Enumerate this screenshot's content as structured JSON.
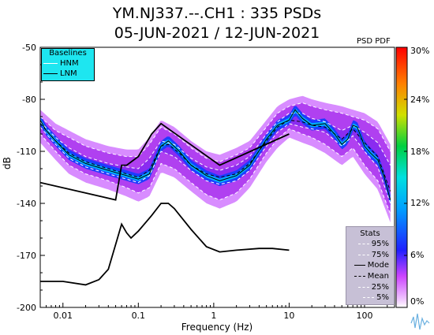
{
  "title_line1": "YM.NJ337.--.CH1 : 335 PSDs",
  "title_line2": "05-JUN-2021 / 12-JUN-2021",
  "colorbar_title": "PSD PDF",
  "colorbar_ticks": [
    "30%",
    "24%",
    "18%",
    "12%",
    "6%",
    "0%"
  ],
  "chart_data": {
    "type": "heatmap",
    "xlabel": "Frequency (Hz)",
    "ylabel": "dB",
    "xscale": "log",
    "xlim": [
      0.005,
      250
    ],
    "ylim": [
      -200,
      -50
    ],
    "xticks": [
      0.01,
      0.1,
      1,
      10,
      100
    ],
    "xtick_labels": [
      "0.01",
      "0.1",
      "1",
      "10",
      "100"
    ],
    "yticks": [
      -50,
      -80,
      -110,
      -140,
      -170,
      -200
    ],
    "ytick_labels": [
      "-50",
      "-80",
      "-110",
      "-140",
      "-170",
      "-200"
    ],
    "colorbar_range_percent": [
      0,
      30
    ],
    "legend_baselines": {
      "title": "Baselines",
      "entries": [
        "HNM",
        "LNM"
      ]
    },
    "legend_stats": {
      "title": "Stats",
      "entries": [
        "95%",
        "75%",
        "Mode",
        "Mean",
        "25%",
        "5%"
      ]
    },
    "series": [
      {
        "name": "HNM",
        "x": [
          0.005,
          0.05,
          0.06,
          0.07,
          0.1,
          0.15,
          0.2,
          1.2,
          10
        ],
        "y": [
          -128,
          -138,
          -118,
          -118,
          -113,
          -100,
          -94,
          -118,
          -100
        ]
      },
      {
        "name": "LNM",
        "x": [
          0.005,
          0.01,
          0.02,
          0.03,
          0.04,
          0.06,
          0.07,
          0.08,
          0.1,
          0.15,
          0.2,
          0.25,
          0.3,
          0.5,
          0.8,
          1.2,
          2,
          4,
          6,
          10
        ],
        "y": [
          -185,
          -185,
          -187,
          -184,
          -178,
          -152,
          -157,
          -160,
          -156,
          -147,
          -140,
          -140,
          -143,
          -155,
          -165,
          -168,
          -167,
          -166,
          -166,
          -167
        ]
      },
      {
        "name": "Mode",
        "x": [
          0.005,
          0.006,
          0.008,
          0.012,
          0.02,
          0.04,
          0.07,
          0.1,
          0.14,
          0.2,
          0.25,
          0.35,
          0.5,
          0.8,
          1.2,
          2,
          3,
          5,
          7,
          10,
          12,
          15,
          20,
          30,
          40,
          50,
          60,
          70,
          80,
          100,
          120,
          150,
          180,
          220
        ],
        "y": [
          -92,
          -98,
          -104,
          -112,
          -117,
          -121,
          -124,
          -126,
          -123,
          -107,
          -104,
          -110,
          -118,
          -124,
          -127,
          -124,
          -118,
          -103,
          -95,
          -92,
          -86,
          -91,
          -95,
          -94,
          -100,
          -106,
          -103,
          -95,
          -96,
          -107,
          -111,
          -115,
          -124,
          -138
        ]
      },
      {
        "name": "Mean",
        "x": [
          0.005,
          0.008,
          0.012,
          0.02,
          0.04,
          0.07,
          0.1,
          0.14,
          0.2,
          0.25,
          0.35,
          0.5,
          0.8,
          1.2,
          2,
          3,
          5,
          7,
          10,
          15,
          20,
          30,
          50,
          70,
          100,
          150,
          220
        ],
        "y": [
          -94,
          -104,
          -111,
          -116,
          -120,
          -123,
          -125,
          -121,
          -107,
          -106,
          -111,
          -118,
          -123,
          -125,
          -123,
          -117,
          -104,
          -96,
          -92,
          -93,
          -95,
          -96,
          -103,
          -97,
          -105,
          -113,
          -133
        ]
      },
      {
        "name": "95%",
        "x": [
          0.005,
          0.008,
          0.012,
          0.02,
          0.04,
          0.07,
          0.1,
          0.14,
          0.2,
          0.3,
          0.5,
          0.8,
          1.2,
          2,
          3,
          5,
          7,
          10,
          15,
          20,
          30,
          50,
          70,
          100,
          150,
          220
        ],
        "y": [
          -90,
          -98,
          -102,
          -107,
          -111,
          -113,
          -113,
          -106,
          -96,
          -100,
          -108,
          -114,
          -116,
          -112,
          -108,
          -96,
          -88,
          -84,
          -82,
          -84,
          -86,
          -88,
          -90,
          -92,
          -97,
          -110
        ]
      },
      {
        "name": "75%",
        "x": [
          0.005,
          0.008,
          0.012,
          0.02,
          0.04,
          0.07,
          0.1,
          0.14,
          0.2,
          0.3,
          0.5,
          0.8,
          1.2,
          2,
          3,
          5,
          7,
          10,
          15,
          20,
          30,
          50,
          70,
          100,
          150,
          220
        ],
        "y": [
          -93,
          -102,
          -108,
          -113,
          -117,
          -119,
          -120,
          -114,
          -104,
          -106,
          -114,
          -119,
          -121,
          -118,
          -113,
          -100,
          -93,
          -88,
          -88,
          -91,
          -93,
          -98,
          -95,
          -99,
          -105,
          -118
        ]
      },
      {
        "name": "25%",
        "x": [
          0.005,
          0.008,
          0.012,
          0.02,
          0.04,
          0.07,
          0.1,
          0.14,
          0.2,
          0.3,
          0.5,
          0.8,
          1.2,
          2,
          3,
          5,
          7,
          10,
          15,
          20,
          30,
          50,
          70,
          100,
          150,
          220
        ],
        "y": [
          -96,
          -106,
          -114,
          -119,
          -123,
          -126,
          -128,
          -124,
          -110,
          -113,
          -121,
          -127,
          -129,
          -127,
          -121,
          -107,
          -99,
          -94,
          -96,
          -97,
          -99,
          -107,
          -101,
          -110,
          -119,
          -140
        ]
      },
      {
        "name": "5%",
        "x": [
          0.005,
          0.008,
          0.012,
          0.02,
          0.04,
          0.07,
          0.1,
          0.14,
          0.2,
          0.3,
          0.5,
          0.8,
          1.2,
          2,
          3,
          5,
          7,
          10,
          15,
          20,
          30,
          50,
          70,
          100,
          150,
          220
        ],
        "y": [
          -100,
          -110,
          -118,
          -123,
          -127,
          -131,
          -134,
          -131,
          -117,
          -120,
          -128,
          -135,
          -138,
          -134,
          -126,
          -111,
          -103,
          -97,
          -100,
          -102,
          -106,
          -113,
          -108,
          -118,
          -127,
          -146
        ]
      }
    ]
  }
}
